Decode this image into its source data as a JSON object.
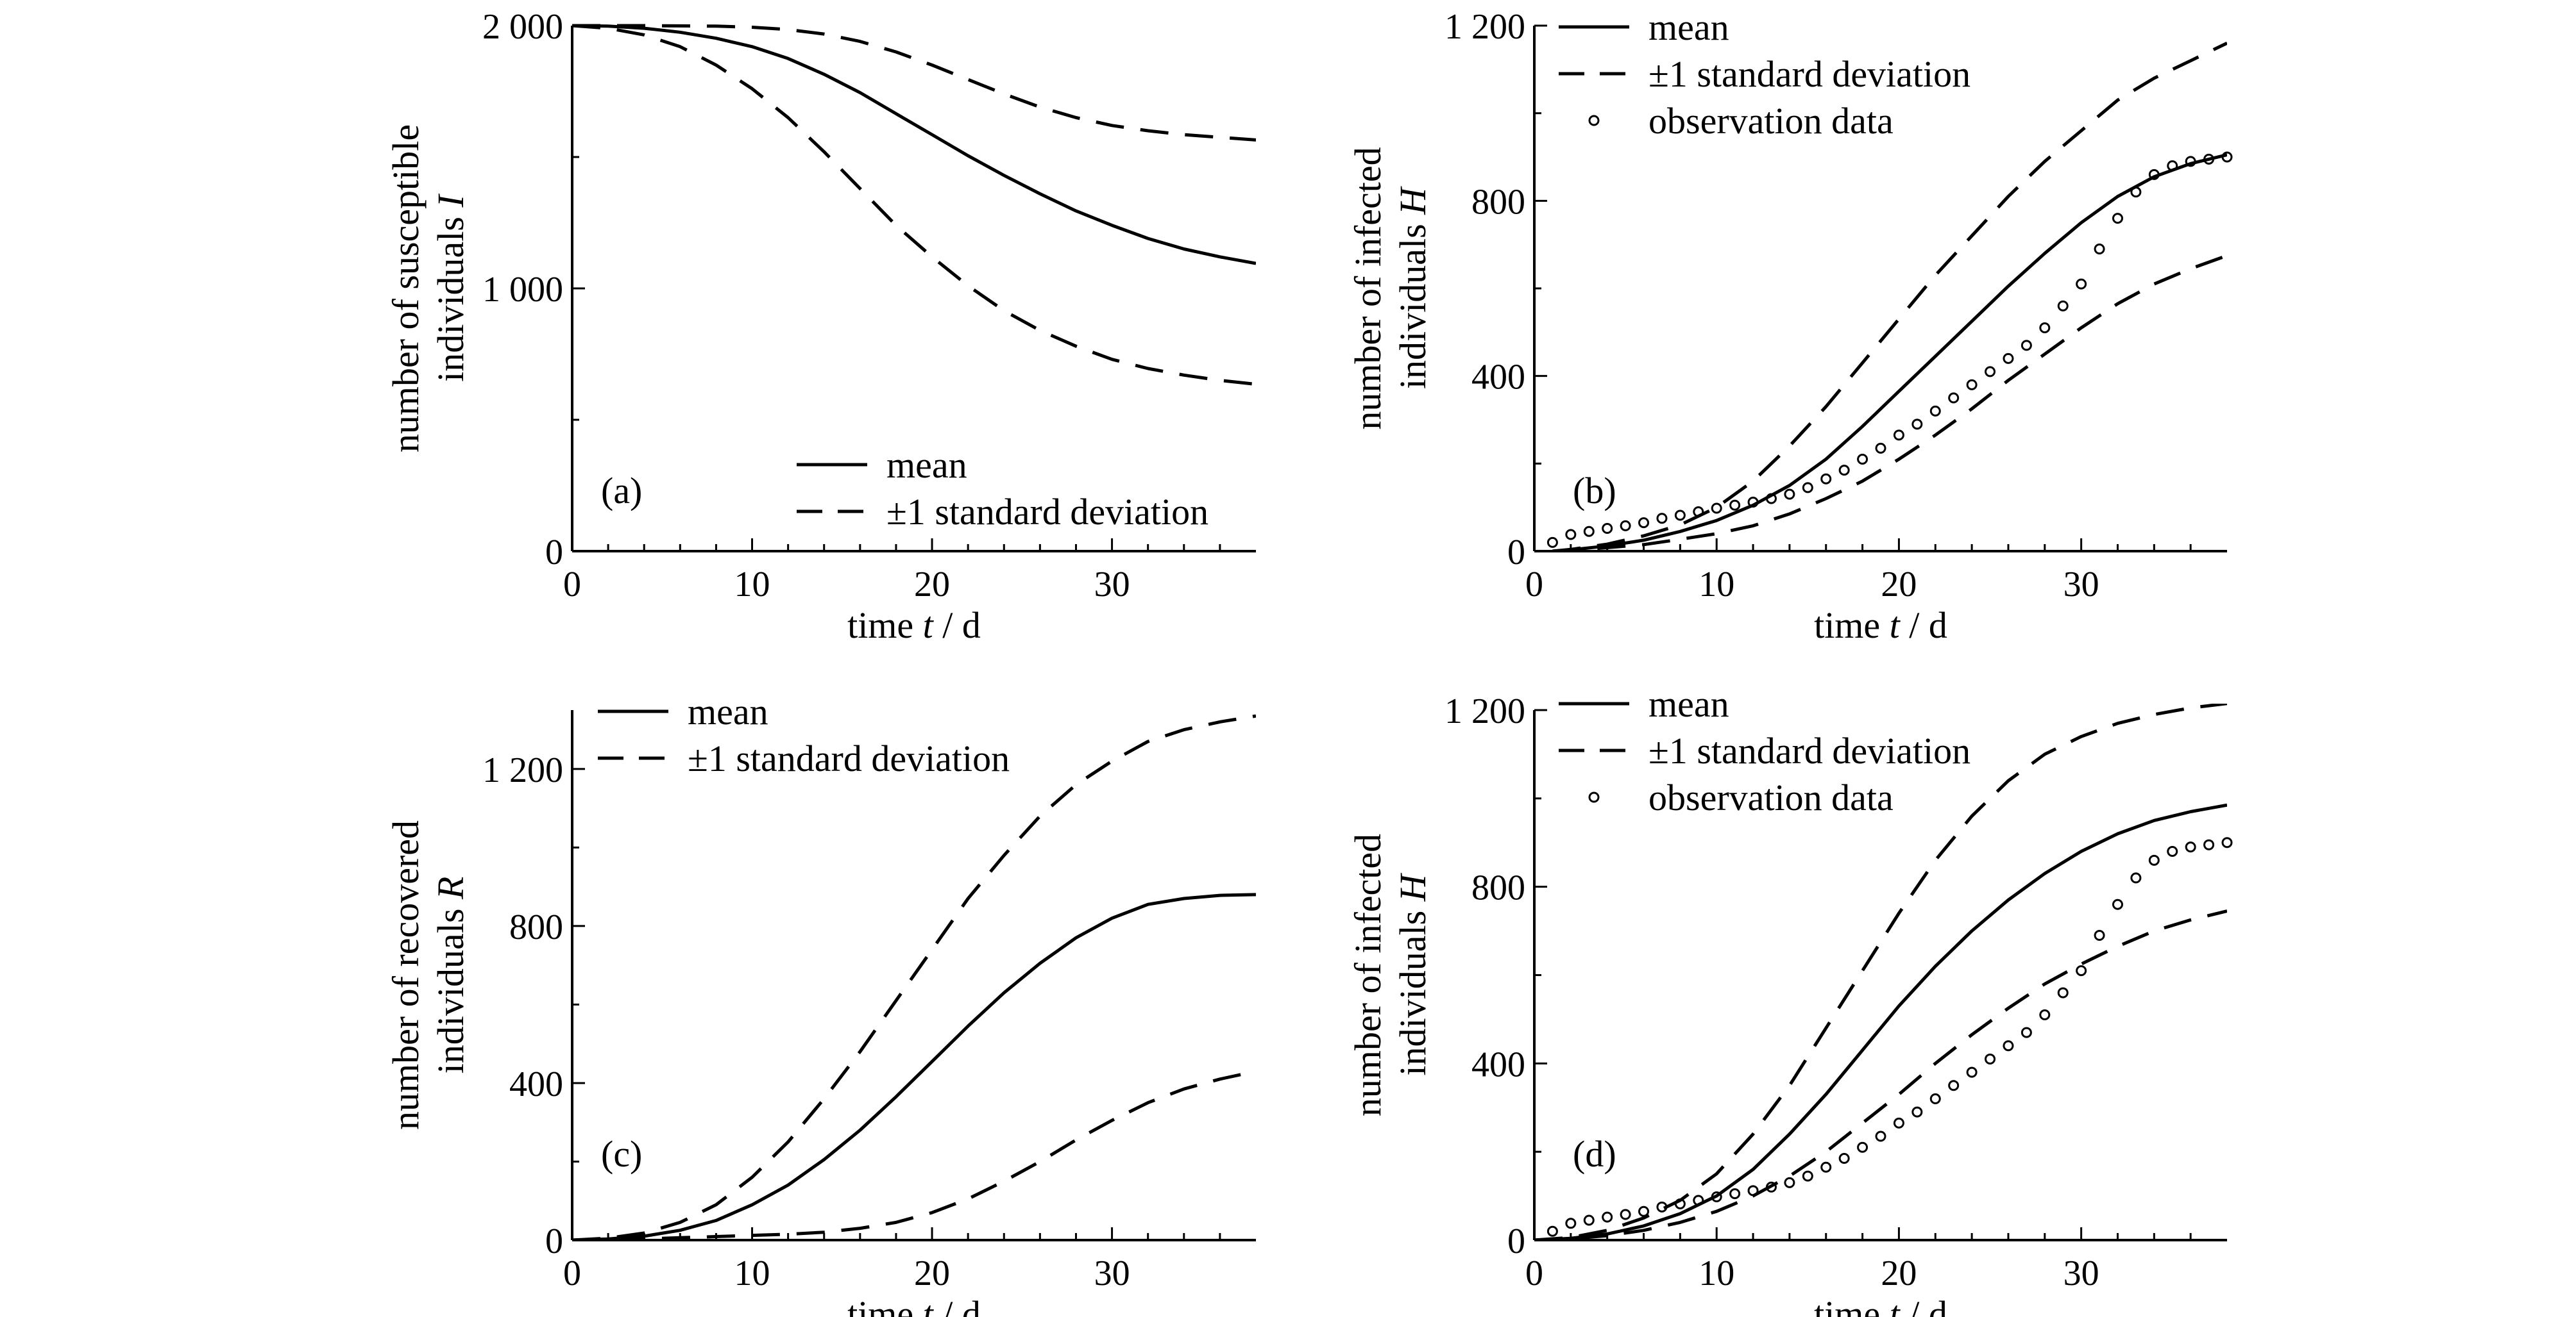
{
  "chart_data": [
    {
      "type": "line",
      "panel_label": "(a)",
      "xlabel_parts": [
        "time ",
        "t",
        " / d"
      ],
      "ylabel_line1": "number of susceptible",
      "ylabel_line2_parts": [
        "individuals ",
        "I"
      ],
      "xlim": [
        0,
        38
      ],
      "ylim": [
        0,
        2000
      ],
      "xticks": [
        0,
        10,
        20,
        30
      ],
      "xtick_labels": [
        "0",
        "10",
        "20",
        "30"
      ],
      "yticks": [
        0,
        1000,
        2000
      ],
      "ytick_labels": [
        "0",
        "1 000",
        "2 000"
      ],
      "legend_position": "bottom-right",
      "legend": [
        {
          "label": "mean",
          "style": "solid"
        },
        {
          "label": "±1 standard deviation",
          "style": "dashed"
        }
      ],
      "series": [
        {
          "role": "mean",
          "style": "solid",
          "x": [
            0,
            2,
            4,
            6,
            8,
            10,
            12,
            14,
            16,
            18,
            20,
            22,
            24,
            26,
            28,
            30,
            32,
            34,
            36,
            38
          ],
          "y": [
            2000,
            1998,
            1990,
            1975,
            1952,
            1920,
            1875,
            1815,
            1745,
            1665,
            1585,
            1505,
            1430,
            1360,
            1295,
            1240,
            1190,
            1150,
            1120,
            1095
          ]
        },
        {
          "role": "upper",
          "style": "dashed",
          "x": [
            0,
            2,
            4,
            6,
            8,
            10,
            12,
            14,
            16,
            18,
            20,
            22,
            24,
            26,
            28,
            30,
            32,
            34,
            36,
            38
          ],
          "y": [
            2000,
            2000,
            2000,
            1999,
            1998,
            1994,
            1985,
            1968,
            1940,
            1900,
            1850,
            1795,
            1740,
            1690,
            1650,
            1620,
            1600,
            1585,
            1575,
            1565
          ]
        },
        {
          "role": "lower",
          "style": "dashed",
          "x": [
            0,
            2,
            4,
            6,
            8,
            10,
            12,
            14,
            16,
            18,
            20,
            22,
            24,
            26,
            28,
            30,
            32,
            34,
            36,
            38
          ],
          "y": [
            2000,
            1990,
            1965,
            1920,
            1850,
            1760,
            1650,
            1520,
            1380,
            1240,
            1120,
            1010,
            915,
            840,
            780,
            730,
            695,
            670,
            650,
            635
          ]
        }
      ]
    },
    {
      "type": "line",
      "panel_label": "(b)",
      "xlabel_parts": [
        "time ",
        "t",
        " / d"
      ],
      "ylabel_line1": "number of infected",
      "ylabel_line2_parts": [
        "individuals ",
        "H"
      ],
      "xlim": [
        0,
        38
      ],
      "ylim": [
        0,
        1200
      ],
      "xticks": [
        0,
        10,
        20,
        30
      ],
      "xtick_labels": [
        "0",
        "10",
        "20",
        "30"
      ],
      "yticks": [
        0,
        400,
        800,
        1200
      ],
      "ytick_labels": [
        "0",
        "400",
        "800",
        "1 200"
      ],
      "legend_position": "top-left",
      "legend": [
        {
          "label": "mean",
          "style": "solid"
        },
        {
          "label": "±1 standard deviation",
          "style": "dashed"
        },
        {
          "label": "observation data",
          "style": "markers"
        }
      ],
      "series": [
        {
          "role": "mean",
          "style": "solid",
          "x": [
            1,
            2,
            4,
            6,
            8,
            10,
            12,
            14,
            16,
            18,
            20,
            22,
            24,
            26,
            28,
            30,
            32,
            34,
            36,
            38
          ],
          "y": [
            0,
            3,
            12,
            25,
            45,
            70,
            105,
            150,
            210,
            285,
            365,
            445,
            525,
            605,
            680,
            750,
            810,
            855,
            885,
            905
          ]
        },
        {
          "role": "upper",
          "style": "dashed",
          "x": [
            1,
            2,
            4,
            6,
            8,
            10,
            12,
            14,
            16,
            18,
            20,
            22,
            24,
            26,
            28,
            30,
            32,
            34,
            36,
            38
          ],
          "y": [
            0,
            4,
            16,
            35,
            60,
            100,
            160,
            240,
            330,
            430,
            530,
            630,
            720,
            810,
            890,
            960,
            1030,
            1080,
            1120,
            1160
          ]
        },
        {
          "role": "lower",
          "style": "dashed",
          "x": [
            1,
            2,
            4,
            6,
            8,
            10,
            12,
            14,
            16,
            18,
            20,
            22,
            24,
            26,
            28,
            30,
            32,
            34,
            36,
            38
          ],
          "y": [
            0,
            2,
            8,
            15,
            27,
            40,
            58,
            85,
            120,
            160,
            210,
            265,
            325,
            390,
            450,
            510,
            565,
            610,
            645,
            675
          ]
        },
        {
          "role": "observation",
          "style": "markers",
          "x": [
            1,
            2,
            3,
            4,
            5,
            6,
            7,
            8,
            9,
            10,
            11,
            12,
            13,
            14,
            15,
            16,
            17,
            18,
            19,
            20,
            21,
            22,
            23,
            24,
            25,
            26,
            27,
            28,
            29,
            30,
            31,
            32,
            33,
            34,
            35,
            36,
            37,
            38
          ],
          "y": [
            20,
            38,
            45,
            52,
            58,
            65,
            75,
            82,
            90,
            98,
            105,
            112,
            120,
            130,
            145,
            165,
            185,
            210,
            235,
            265,
            290,
            320,
            350,
            380,
            410,
            440,
            470,
            510,
            560,
            610,
            690,
            760,
            820,
            860,
            880,
            890,
            895,
            900
          ]
        }
      ]
    },
    {
      "type": "line",
      "panel_label": "(c)",
      "xlabel_parts": [
        "time ",
        "t",
        " / d"
      ],
      "ylabel_line1": "number of recovered",
      "ylabel_line2_parts": [
        "individuals ",
        "R"
      ],
      "xlim": [
        0,
        38
      ],
      "ylim": [
        0,
        1350
      ],
      "xticks": [
        0,
        10,
        20,
        30
      ],
      "xtick_labels": [
        "0",
        "10",
        "20",
        "30"
      ],
      "yticks": [
        0,
        400,
        800,
        1200
      ],
      "ytick_labels": [
        "0",
        "400",
        "800",
        "1 200"
      ],
      "legend_position": "top-left",
      "legend": [
        {
          "label": "mean",
          "style": "solid"
        },
        {
          "label": "±1 standard deviation",
          "style": "dashed"
        }
      ],
      "series": [
        {
          "role": "mean",
          "style": "solid",
          "x": [
            0,
            2,
            4,
            6,
            8,
            10,
            12,
            14,
            16,
            18,
            20,
            22,
            24,
            26,
            28,
            30,
            32,
            34,
            36,
            38
          ],
          "y": [
            0,
            3,
            10,
            25,
            50,
            90,
            140,
            205,
            280,
            365,
            455,
            545,
            630,
            705,
            770,
            820,
            855,
            870,
            878,
            880
          ]
        },
        {
          "role": "upper",
          "style": "dashed",
          "x": [
            0,
            2,
            4,
            6,
            8,
            10,
            12,
            14,
            16,
            18,
            20,
            22,
            24,
            26,
            28,
            30,
            32,
            34,
            36,
            38
          ],
          "y": [
            0,
            5,
            18,
            45,
            90,
            160,
            250,
            360,
            480,
            610,
            740,
            870,
            980,
            1080,
            1160,
            1220,
            1270,
            1300,
            1320,
            1335
          ]
        },
        {
          "role": "lower",
          "style": "dashed",
          "x": [
            0,
            2,
            4,
            6,
            8,
            10,
            12,
            14,
            16,
            18,
            20,
            22,
            24,
            26,
            28,
            30,
            32,
            34,
            36,
            38
          ],
          "y": [
            0,
            1,
            3,
            6,
            9,
            12,
            15,
            20,
            30,
            45,
            70,
            105,
            150,
            200,
            255,
            305,
            350,
            385,
            410,
            430
          ]
        }
      ]
    },
    {
      "type": "line",
      "panel_label": "(d)",
      "xlabel_parts": [
        "time ",
        "t",
        " / d"
      ],
      "ylabel_line1": "number of infected",
      "ylabel_line2_parts": [
        "individuals ",
        "H"
      ],
      "xlim": [
        0,
        38
      ],
      "ylim": [
        0,
        1200
      ],
      "xticks": [
        0,
        10,
        20,
        30
      ],
      "xtick_labels": [
        "0",
        "10",
        "20",
        "30"
      ],
      "yticks": [
        0,
        400,
        800,
        1200
      ],
      "ytick_labels": [
        "0",
        "400",
        "800",
        "1 200"
      ],
      "legend_position": "top-left",
      "legend": [
        {
          "label": "mean",
          "style": "solid"
        },
        {
          "label": "±1 standard deviation",
          "style": "dashed"
        },
        {
          "label": "observation data",
          "style": "markers"
        }
      ],
      "series": [
        {
          "role": "mean",
          "style": "solid",
          "x": [
            0,
            2,
            4,
            6,
            8,
            10,
            12,
            14,
            16,
            18,
            20,
            22,
            24,
            26,
            28,
            30,
            32,
            34,
            36,
            38
          ],
          "y": [
            0,
            4,
            14,
            32,
            60,
            100,
            160,
            240,
            330,
            430,
            530,
            620,
            700,
            770,
            830,
            880,
            920,
            950,
            970,
            985
          ]
        },
        {
          "role": "upper",
          "style": "dashed",
          "x": [
            0,
            2,
            4,
            6,
            8,
            10,
            12,
            14,
            16,
            18,
            20,
            22,
            24,
            26,
            28,
            30,
            32,
            34,
            36,
            38
          ],
          "y": [
            0,
            6,
            22,
            50,
            90,
            150,
            240,
            350,
            480,
            610,
            740,
            860,
            960,
            1040,
            1100,
            1140,
            1170,
            1190,
            1205,
            1215
          ]
        },
        {
          "role": "lower",
          "style": "dashed",
          "x": [
            0,
            2,
            4,
            6,
            8,
            10,
            12,
            14,
            16,
            18,
            20,
            22,
            24,
            26,
            28,
            30,
            32,
            34,
            36,
            38
          ],
          "y": [
            0,
            3,
            10,
            22,
            40,
            65,
            100,
            145,
            200,
            265,
            330,
            400,
            465,
            525,
            580,
            625,
            665,
            700,
            725,
            745
          ]
        },
        {
          "role": "observation",
          "style": "markers",
          "x": [
            1,
            2,
            3,
            4,
            5,
            6,
            7,
            8,
            9,
            10,
            11,
            12,
            13,
            14,
            15,
            16,
            17,
            18,
            19,
            20,
            21,
            22,
            23,
            24,
            25,
            26,
            27,
            28,
            29,
            30,
            31,
            32,
            33,
            34,
            35,
            36,
            37,
            38
          ],
          "y": [
            20,
            38,
            45,
            52,
            58,
            65,
            75,
            82,
            90,
            98,
            105,
            112,
            120,
            130,
            145,
            165,
            185,
            210,
            235,
            265,
            290,
            320,
            350,
            380,
            410,
            440,
            470,
            510,
            560,
            610,
            690,
            760,
            820,
            860,
            880,
            890,
            895,
            900
          ]
        }
      ]
    }
  ]
}
